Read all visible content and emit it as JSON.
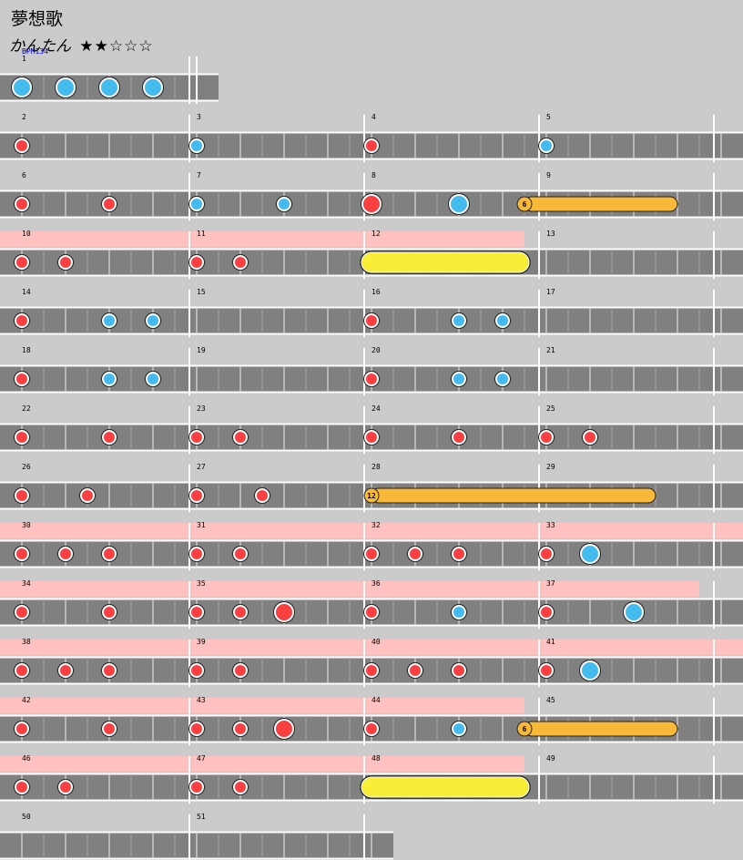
{
  "song_title": "夢想歌",
  "difficulty": {
    "label": "かんたん",
    "stars_text": "★★☆☆☆",
    "level": 2,
    "max_level": 5
  },
  "colors": {
    "background": "#cbcbcb",
    "lane": "#808080",
    "lane_edge": "#ffffff",
    "gogo_highlight": "#ffc0c0",
    "don": "#f84040",
    "ka": "#44bbee",
    "drumroll": "#f8b838",
    "big_drumroll": "#f8ee38",
    "bpm_text": "#0000cc"
  },
  "chart_data": {
    "type": "table",
    "beats_per_measure": 4,
    "subdivision": 8,
    "bpm_label": "BPM134",
    "rows": [
      {
        "measures": [
          1
        ],
        "lane_end": 1,
        "gogo": null,
        "bpm_at": 1,
        "notes": [
          {
            "b": 0,
            "t": "KA"
          },
          {
            "b": 1,
            "t": "KA"
          },
          {
            "b": 2,
            "t": "KA"
          },
          {
            "b": 3,
            "t": "KA"
          }
        ]
      },
      {
        "measures": [
          2,
          3,
          4,
          5
        ],
        "lane_end": 16,
        "gogo": null,
        "notes": [
          {
            "b": 0,
            "t": "don"
          },
          {
            "b": 4,
            "t": "ka"
          },
          {
            "b": 8,
            "t": "don"
          },
          {
            "b": 12,
            "t": "ka"
          }
        ]
      },
      {
        "measures": [
          6,
          7,
          8,
          9
        ],
        "lane_end": 16,
        "gogo": null,
        "notes": [
          {
            "b": 0,
            "t": "don"
          },
          {
            "b": 2,
            "t": "don"
          },
          {
            "b": 4,
            "t": "ka"
          },
          {
            "b": 6,
            "t": "ka"
          },
          {
            "b": 8,
            "t": "DON"
          },
          {
            "b": 10,
            "t": "KA"
          },
          {
            "b": 11.5,
            "t": "roll",
            "end": 15,
            "label": "6"
          }
        ]
      },
      {
        "measures": [
          10,
          11,
          12,
          13
        ],
        "lane_end": 16,
        "gogo": [
          0,
          11.5
        ],
        "notes": [
          {
            "b": 0,
            "t": "don"
          },
          {
            "b": 1,
            "t": "don"
          },
          {
            "b": 4,
            "t": "don"
          },
          {
            "b": 5,
            "t": "don"
          },
          {
            "b": 8,
            "t": "bigroll",
            "end": 11.5
          }
        ]
      },
      {
        "measures": [
          14,
          15,
          16,
          17
        ],
        "lane_end": 16,
        "gogo": null,
        "notes": [
          {
            "b": 0,
            "t": "don"
          },
          {
            "b": 2,
            "t": "ka"
          },
          {
            "b": 3,
            "t": "ka"
          },
          {
            "b": 8,
            "t": "don"
          },
          {
            "b": 10,
            "t": "ka"
          },
          {
            "b": 11,
            "t": "ka"
          }
        ]
      },
      {
        "measures": [
          18,
          19,
          20,
          21
        ],
        "lane_end": 16,
        "gogo": null,
        "notes": [
          {
            "b": 0,
            "t": "don"
          },
          {
            "b": 2,
            "t": "ka"
          },
          {
            "b": 3,
            "t": "ka"
          },
          {
            "b": 8,
            "t": "don"
          },
          {
            "b": 10,
            "t": "ka"
          },
          {
            "b": 11,
            "t": "ka"
          }
        ]
      },
      {
        "measures": [
          22,
          23,
          24,
          25
        ],
        "lane_end": 16,
        "gogo": null,
        "notes": [
          {
            "b": 0,
            "t": "don"
          },
          {
            "b": 2,
            "t": "don"
          },
          {
            "b": 4,
            "t": "don"
          },
          {
            "b": 5,
            "t": "don"
          },
          {
            "b": 8,
            "t": "don"
          },
          {
            "b": 10,
            "t": "don"
          },
          {
            "b": 12,
            "t": "don"
          },
          {
            "b": 13,
            "t": "don"
          }
        ]
      },
      {
        "measures": [
          26,
          27,
          28,
          29
        ],
        "lane_end": 16,
        "gogo": null,
        "notes": [
          {
            "b": 0,
            "t": "don"
          },
          {
            "b": 1.5,
            "t": "don"
          },
          {
            "b": 4,
            "t": "don"
          },
          {
            "b": 5.5,
            "t": "don"
          },
          {
            "b": 8,
            "t": "roll",
            "end": 14.5,
            "label": "12"
          }
        ]
      },
      {
        "measures": [
          30,
          31,
          32,
          33
        ],
        "lane_end": 16,
        "gogo": [
          0,
          17
        ],
        "notes": [
          {
            "b": 0,
            "t": "don"
          },
          {
            "b": 1,
            "t": "don"
          },
          {
            "b": 2,
            "t": "don"
          },
          {
            "b": 4,
            "t": "don"
          },
          {
            "b": 5,
            "t": "don"
          },
          {
            "b": 8,
            "t": "don"
          },
          {
            "b": 9,
            "t": "don"
          },
          {
            "b": 10,
            "t": "don"
          },
          {
            "b": 12,
            "t": "don"
          },
          {
            "b": 13,
            "t": "KA"
          }
        ]
      },
      {
        "measures": [
          34,
          35,
          36,
          37
        ],
        "lane_end": 16,
        "gogo": [
          0,
          15.5
        ],
        "notes": [
          {
            "b": 0,
            "t": "don"
          },
          {
            "b": 2,
            "t": "don"
          },
          {
            "b": 4,
            "t": "don"
          },
          {
            "b": 5,
            "t": "don"
          },
          {
            "b": 6,
            "t": "DON"
          },
          {
            "b": 8,
            "t": "don"
          },
          {
            "b": 10,
            "t": "ka"
          },
          {
            "b": 12,
            "t": "don"
          },
          {
            "b": 14,
            "t": "KA"
          }
        ]
      },
      {
        "measures": [
          38,
          39,
          40,
          41
        ],
        "lane_end": 16,
        "gogo": [
          0,
          17
        ],
        "notes": [
          {
            "b": 0,
            "t": "don"
          },
          {
            "b": 1,
            "t": "don"
          },
          {
            "b": 2,
            "t": "don"
          },
          {
            "b": 4,
            "t": "don"
          },
          {
            "b": 5,
            "t": "don"
          },
          {
            "b": 8,
            "t": "don"
          },
          {
            "b": 9,
            "t": "don"
          },
          {
            "b": 10,
            "t": "don"
          },
          {
            "b": 12,
            "t": "don"
          },
          {
            "b": 13,
            "t": "KA"
          }
        ]
      },
      {
        "measures": [
          42,
          43,
          44,
          45
        ],
        "lane_end": 16,
        "gogo": [
          0,
          11.5
        ],
        "notes": [
          {
            "b": 0,
            "t": "don"
          },
          {
            "b": 2,
            "t": "don"
          },
          {
            "b": 4,
            "t": "don"
          },
          {
            "b": 5,
            "t": "don"
          },
          {
            "b": 6,
            "t": "DON"
          },
          {
            "b": 8,
            "t": "don"
          },
          {
            "b": 10,
            "t": "ka"
          },
          {
            "b": 11.5,
            "t": "roll",
            "end": 15,
            "label": "6"
          }
        ]
      },
      {
        "measures": [
          46,
          47,
          48,
          49
        ],
        "lane_end": 16,
        "gogo": [
          0,
          11.5
        ],
        "notes": [
          {
            "b": 0,
            "t": "don"
          },
          {
            "b": 1,
            "t": "don"
          },
          {
            "b": 4,
            "t": "don"
          },
          {
            "b": 5,
            "t": "don"
          },
          {
            "b": 8,
            "t": "bigroll",
            "end": 11.5
          }
        ]
      },
      {
        "measures": [
          50,
          51
        ],
        "lane_end": 9,
        "gogo": null,
        "notes": []
      }
    ]
  }
}
